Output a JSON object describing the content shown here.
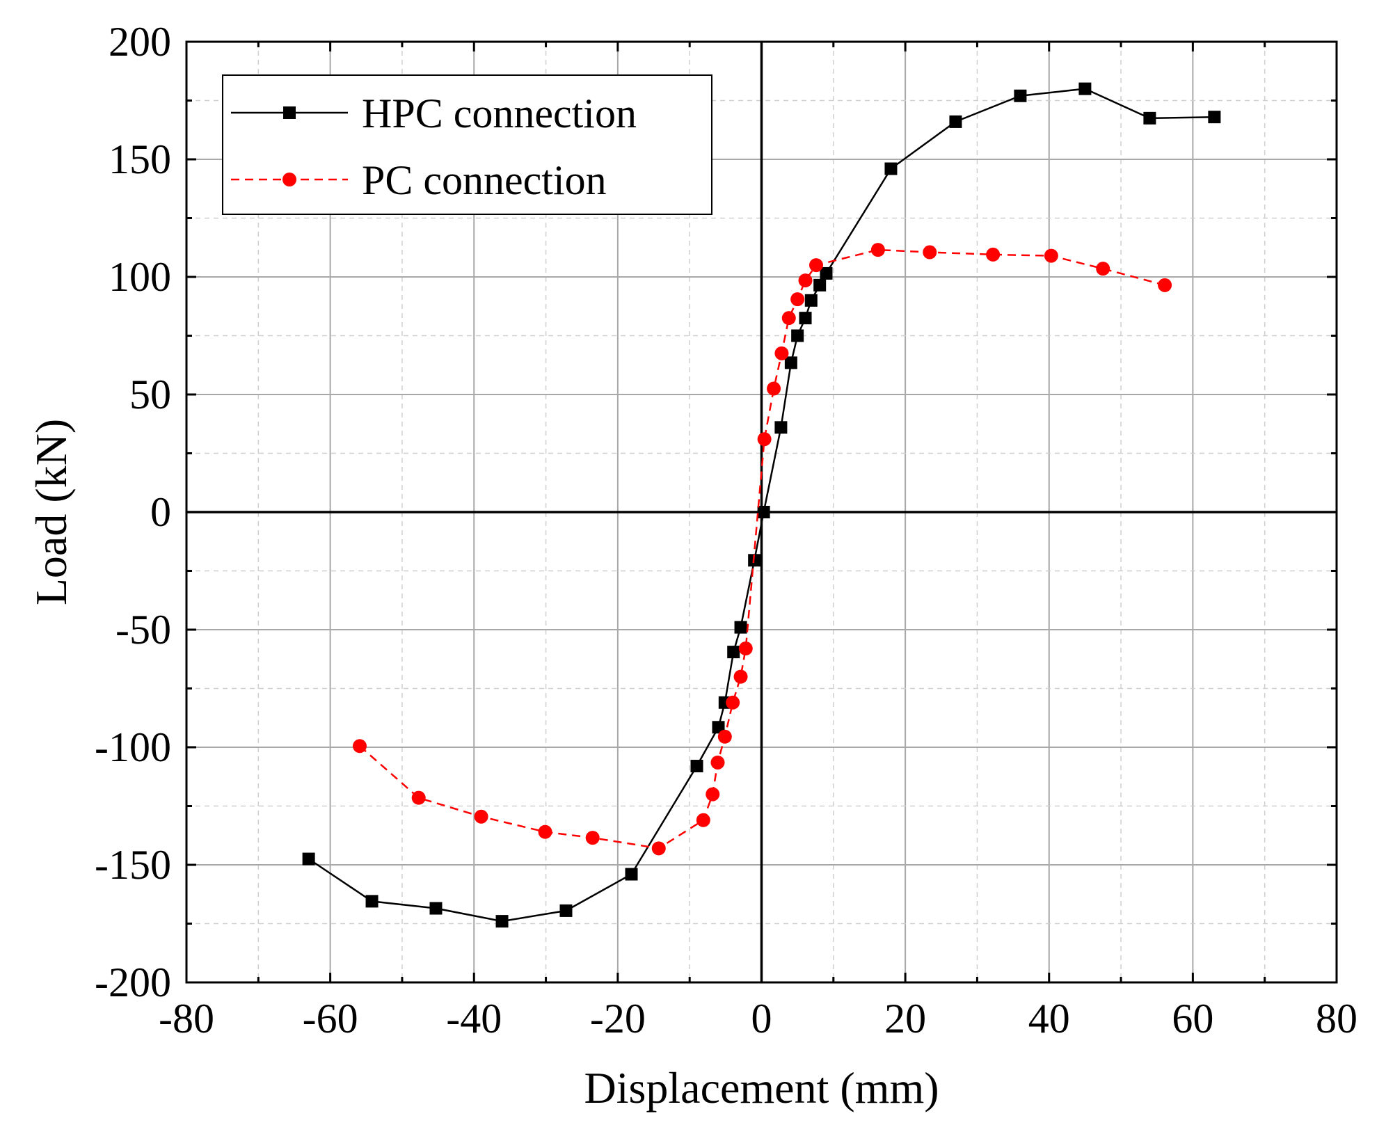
{
  "chart_data": {
    "type": "line",
    "title": "",
    "xlabel": "Displacement (mm)",
    "ylabel": "Load (kN)",
    "xlim": [
      -80,
      80
    ],
    "ylim": [
      -200,
      200
    ],
    "x_ticks": [
      -80,
      -60,
      -40,
      -20,
      0,
      20,
      40,
      60,
      80
    ],
    "y_ticks": [
      -200,
      -150,
      -100,
      -50,
      0,
      50,
      100,
      150,
      200
    ],
    "x_tick_labels": [
      "-80",
      "-60",
      "-40",
      "-20",
      "0",
      "20",
      "40",
      "60",
      "80"
    ],
    "y_tick_labels": [
      "-200",
      "-150",
      "-100",
      "-50",
      "0",
      "50",
      "100",
      "150",
      "200"
    ],
    "grid": true,
    "legend_position": "top-left",
    "series": [
      {
        "name": "HPC connection",
        "color": "#000000",
        "line_style": "solid",
        "marker": "square",
        "x": [
          -63.0,
          -54.2,
          -45.3,
          -36.1,
          -27.2,
          -18.1,
          -9.0,
          -6.0,
          -5.1,
          -3.9,
          -2.9,
          -1.0,
          0.3,
          2.7,
          4.1,
          5.0,
          6.1,
          6.9,
          8.1,
          9.0,
          18.0,
          27.0,
          36.0,
          45.0,
          54.0,
          63.0
        ],
        "y": [
          -147.5,
          -165.5,
          -168.5,
          -174.0,
          -169.5,
          -154.0,
          -108.0,
          -91.5,
          -81.0,
          -59.5,
          -49.0,
          -20.5,
          0.0,
          36.0,
          63.5,
          75.0,
          82.5,
          90.0,
          96.5,
          101.5,
          146.0,
          166.0,
          177.0,
          180.0,
          167.5,
          168.0
        ]
      },
      {
        "name": "PC connection",
        "color": "#ff0000",
        "line_style": "dashed",
        "marker": "circle",
        "x": [
          -55.9,
          -47.7,
          -39.0,
          -30.1,
          -23.5,
          -14.3,
          -8.1,
          -6.8,
          -6.1,
          -5.1,
          -4.0,
          -2.9,
          -2.2,
          0.4,
          1.7,
          2.8,
          3.8,
          5.0,
          6.1,
          7.6,
          16.2,
          23.4,
          32.2,
          40.3,
          47.5,
          56.1
        ],
        "y": [
          -99.5,
          -121.5,
          -129.5,
          -136.0,
          -138.5,
          -143.0,
          -131.0,
          -120.0,
          -106.5,
          -95.5,
          -81.0,
          -70.0,
          -58.0,
          31.0,
          52.5,
          67.5,
          82.5,
          90.5,
          98.5,
          105.0,
          111.5,
          110.5,
          109.5,
          109.0,
          103.5,
          96.5
        ]
      }
    ]
  }
}
